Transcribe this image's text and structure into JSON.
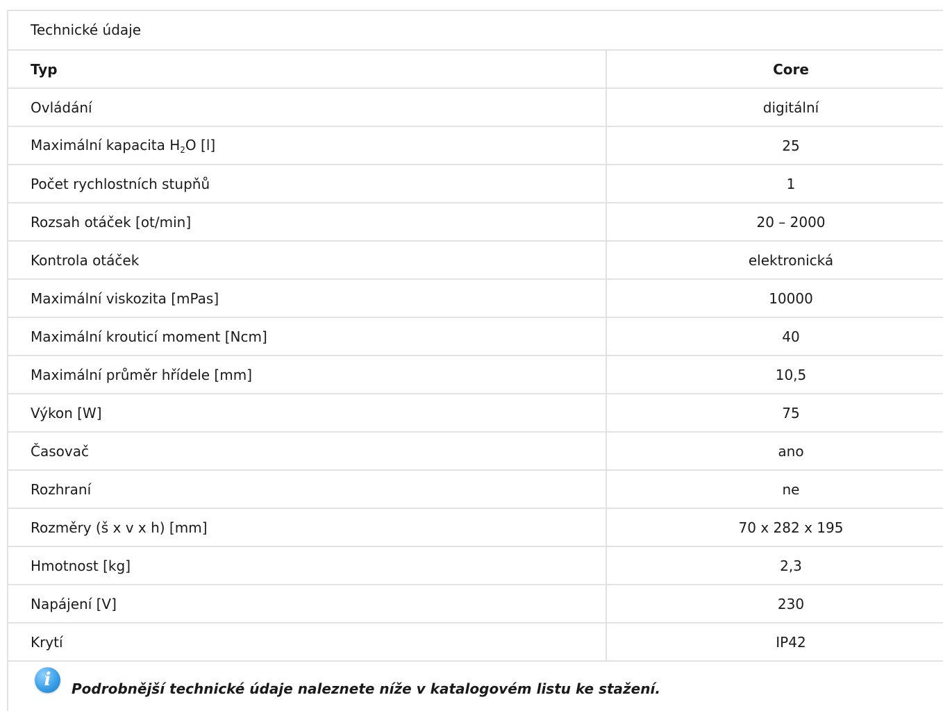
{
  "section": {
    "title": "Technické údaje"
  },
  "table": {
    "header": {
      "label": "Typ",
      "value": "Core"
    },
    "rows": [
      {
        "label": "Ovládání",
        "value": "digitální"
      },
      {
        "label_prefix": "Maximální kapacita H",
        "label_sub": "2",
        "label_suffix": "O [l]",
        "value": "25"
      },
      {
        "label": "Počet rychlostních stupňů",
        "value": "1"
      },
      {
        "label": "Rozsah otáček [ot/min]",
        "value": "20 – 2000"
      },
      {
        "label": "Kontrola otáček",
        "value": "elektronická"
      },
      {
        "label": "Maximální viskozita [mPas]",
        "value": "10000"
      },
      {
        "label": "Maximální krouticí moment [Ncm]",
        "value": "40"
      },
      {
        "label": "Maximální průměr hřídele [mm]",
        "value": "10,5"
      },
      {
        "label": "Výkon [W]",
        "value": "75"
      },
      {
        "label": "Časovač",
        "value": "ano"
      },
      {
        "label": "Rozhraní",
        "value": "ne"
      },
      {
        "label": "Rozměry (š x v x h) [mm]",
        "value": "70 x 282 x 195"
      },
      {
        "label": "Hmotnost [kg]",
        "value": "2,3"
      },
      {
        "label": "Napájení [V]",
        "value": "230"
      },
      {
        "label": "Krytí",
        "value": "IP42"
      }
    ]
  },
  "note": {
    "icon": "info-icon",
    "icon_glyph": "i",
    "text": "Podrobnější technické údaje naleznete níže v katalogovém listu ke stažení."
  },
  "colors": {
    "border": "#e2e2e2",
    "text": "#1a1a1a",
    "info_icon": "#3aa0e8"
  }
}
